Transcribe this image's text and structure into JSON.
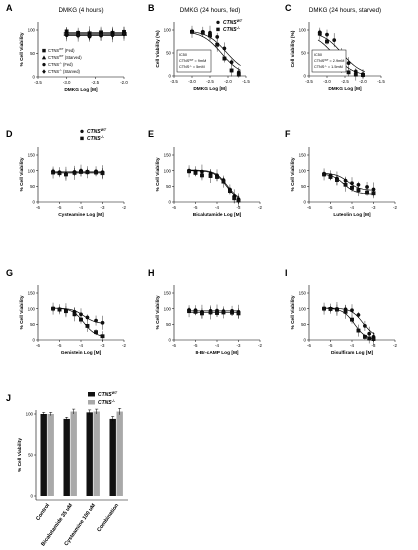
{
  "figure": {
    "colors": {
      "wt": "#111111",
      "ko": "#111111",
      "bar_wt": "#111111",
      "bar_ko": "#a9a9a9"
    }
  },
  "chart_data": [
    {
      "panel": "A",
      "type": "line",
      "title": "DMKG (4 hours)",
      "xlabel": "DMKG Log [M]",
      "ylabel": "% Cell Viability",
      "xlim": [
        -3.5,
        -2.0
      ],
      "ylim": [
        0,
        100
      ],
      "xticks": [
        "-3.5",
        "-3.0",
        "-2.5",
        "-2.0"
      ],
      "yticks": [
        "0",
        "50",
        "100"
      ],
      "legend": [
        "CTNS^WT (Fed)",
        "CTNS^WT (Starved)",
        "CTNS^-/- (Fed)",
        "CTNS^-/- (Starved)"
      ],
      "series": [
        {
          "name": "CTNS^WT (Fed)",
          "marker": "square",
          "x": [
            -3.0,
            -2.8,
            -2.6,
            -2.4,
            -2.2,
            -2.0
          ],
          "y": [
            97,
            94,
            93,
            95,
            94,
            96
          ]
        },
        {
          "name": "CTNS^WT (Starved)",
          "marker": "triangle",
          "x": [
            -3.0,
            -2.8,
            -2.6,
            -2.4,
            -2.2,
            -2.0
          ],
          "y": [
            93,
            91,
            90,
            92,
            93,
            94
          ]
        },
        {
          "name": "CTNS^-/- (Fed)",
          "marker": "circle",
          "x": [
            -3.0,
            -2.8,
            -2.6,
            -2.4,
            -2.2,
            -2.0
          ],
          "y": [
            89,
            88,
            86,
            88,
            89,
            91
          ]
        },
        {
          "name": "CTNS^-/- (Starved)",
          "marker": "diamond",
          "x": [
            -3.0,
            -2.8,
            -2.6,
            -2.4,
            -2.2,
            -2.0
          ],
          "y": [
            91,
            89,
            88,
            90,
            90,
            92
          ]
        }
      ]
    },
    {
      "panel": "B",
      "type": "line",
      "title": "DMKG (24 hours, fed)",
      "xlabel": "DMKG Log [M]",
      "ylabel": "Cell Viability (%)",
      "xlim": [
        -3.5,
        -1.5
      ],
      "ylim": [
        0,
        100
      ],
      "xticks": [
        "-3.5",
        "-3.0",
        "-2.5",
        "-2.0",
        "-1.5"
      ],
      "yticks": [
        "0",
        "50",
        "100"
      ],
      "legend": [
        "CTNS^WT",
        "CTNS^-/-"
      ],
      "ic50_box": [
        "IC50",
        "CTNS^WT = 9mM",
        "CTNS^-/- = 5mM"
      ],
      "series": [
        {
          "name": "CTNS^WT",
          "marker": "circle",
          "x": [
            -3.0,
            -2.7,
            -2.5,
            -2.3,
            -2.1,
            -1.9,
            -1.7
          ],
          "y": [
            97,
            96,
            94,
            85,
            60,
            30,
            8
          ]
        },
        {
          "name": "CTNS^-/-",
          "marker": "square",
          "x": [
            -3.0,
            -2.7,
            -2.5,
            -2.3,
            -2.1,
            -1.9,
            -1.7
          ],
          "y": [
            96,
            94,
            88,
            68,
            38,
            12,
            3
          ]
        }
      ]
    },
    {
      "panel": "C",
      "type": "line",
      "title": "DMKG (24 hours, starved)",
      "xlabel": "DMKG Log [M]",
      "ylabel": "Cell viability (%)",
      "xlim": [
        -3.5,
        -1.5
      ],
      "ylim": [
        0,
        100
      ],
      "xticks": [
        "-3.5",
        "-3.0",
        "-2.5",
        "-2.0",
        "-1.5"
      ],
      "yticks": [
        "0",
        "50",
        "100"
      ],
      "ic50_box": [
        "IC50",
        "CTNS^WT = 2.9mM",
        "CTNS^-/- = 1.5mM"
      ],
      "series": [
        {
          "name": "CTNS^WT",
          "marker": "circle",
          "x": [
            -3.2,
            -3.0,
            -2.8,
            -2.6,
            -2.4,
            -2.2,
            -2.0
          ],
          "y": [
            95,
            90,
            78,
            52,
            28,
            10,
            4
          ]
        },
        {
          "name": "CTNS^-/-",
          "marker": "square",
          "x": [
            -3.2,
            -3.0,
            -2.8,
            -2.6,
            -2.4,
            -2.2,
            -2.0
          ],
          "y": [
            92,
            75,
            45,
            22,
            8,
            3,
            2
          ]
        }
      ]
    },
    {
      "panel": "D",
      "type": "line",
      "xlabel": "Cysteamine Log [M]",
      "ylabel": "% Cell Viability",
      "xlim": [
        -6,
        -2
      ],
      "ylim": [
        0,
        150
      ],
      "xticks": [
        "-6",
        "-5",
        "-4",
        "-3",
        "-2"
      ],
      "yticks": [
        "0",
        "50",
        "100",
        "150"
      ],
      "legend": [
        "CTNS^WT",
        "CTNS^-/-"
      ],
      "series": [
        {
          "name": "CTNS^WT",
          "marker": "circle",
          "x": [
            -5.3,
            -5.0,
            -4.7,
            -4.3,
            -4.0,
            -3.7,
            -3.3,
            -3.0
          ],
          "y": [
            98,
            95,
            90,
            96,
            100,
            97,
            98,
            95
          ]
        },
        {
          "name": "CTNS^-/-",
          "marker": "square",
          "x": [
            -5.3,
            -5.0,
            -4.7,
            -4.3,
            -4.0,
            -3.7,
            -3.3,
            -3.0
          ],
          "y": [
            94,
            92,
            88,
            93,
            96,
            95,
            94,
            92
          ]
        }
      ]
    },
    {
      "panel": "E",
      "type": "line",
      "xlabel": "Bicalutamide Log [M]",
      "ylabel": "% Cell Viability",
      "xlim": [
        -6,
        -2
      ],
      "ylim": [
        0,
        150
      ],
      "xticks": [
        "-6",
        "-5",
        "-4",
        "-3",
        "-2"
      ],
      "yticks": [
        "0",
        "50",
        "100",
        "150"
      ],
      "series": [
        {
          "name": "CTNS^WT",
          "marker": "circle",
          "x": [
            -5.3,
            -5.0,
            -4.7,
            -4.3,
            -4.0,
            -3.7,
            -3.4,
            -3.2,
            -3.0
          ],
          "y": [
            100,
            98,
            97,
            90,
            85,
            70,
            40,
            18,
            8
          ]
        },
        {
          "name": "CTNS^-/-",
          "marker": "square",
          "x": [
            -5.3,
            -5.0,
            -4.7,
            -4.3,
            -4.0,
            -3.7,
            -3.4,
            -3.2,
            -3.0
          ],
          "y": [
            98,
            93,
            85,
            83,
            80,
            65,
            35,
            12,
            5
          ]
        }
      ]
    },
    {
      "panel": "F",
      "type": "line",
      "xlabel": "Luteolin Log [M]",
      "ylabel": "% Cell Viability",
      "xlim": [
        -6,
        -2
      ],
      "ylim": [
        0,
        150
      ],
      "xticks": [
        "-6",
        "-5",
        "-4",
        "-3",
        "-2"
      ],
      "yticks": [
        "0",
        "50",
        "100",
        "150"
      ],
      "series": [
        {
          "name": "CTNS^WT",
          "marker": "circle",
          "x": [
            -5.3,
            -5.0,
            -4.7,
            -4.3,
            -4.0,
            -3.7,
            -3.3,
            -3.0
          ],
          "y": [
            90,
            85,
            75,
            68,
            60,
            55,
            48,
            40
          ]
        },
        {
          "name": "CTNS^-/-",
          "marker": "square",
          "x": [
            -5.3,
            -5.0,
            -4.7,
            -4.3,
            -4.0,
            -3.7,
            -3.3,
            -3.0
          ],
          "y": [
            88,
            80,
            70,
            55,
            45,
            38,
            30,
            28
          ]
        }
      ]
    },
    {
      "panel": "G",
      "type": "line",
      "xlabel": "Genistein Log [M]",
      "ylabel": "% Cell Viability",
      "xlim": [
        -6,
        -2
      ],
      "ylim": [
        0,
        150
      ],
      "xticks": [
        "-6",
        "-5",
        "-4",
        "-3",
        "-2"
      ],
      "yticks": [
        "0",
        "50",
        "100",
        "150"
      ],
      "series": [
        {
          "name": "CTNS^WT",
          "marker": "circle",
          "x": [
            -5.3,
            -5.0,
            -4.7,
            -4.3,
            -4.0,
            -3.7,
            -3.3,
            -3.0
          ],
          "y": [
            100,
            98,
            95,
            90,
            82,
            72,
            62,
            55
          ]
        },
        {
          "name": "CTNS^-/-",
          "marker": "square",
          "x": [
            -5.3,
            -5.0,
            -4.7,
            -4.3,
            -4.0,
            -3.7,
            -3.3,
            -3.0
          ],
          "y": [
            100,
            97,
            92,
            82,
            65,
            45,
            25,
            12
          ]
        }
      ]
    },
    {
      "panel": "H",
      "type": "line",
      "xlabel": "8-Br-cAMP Log [M]",
      "ylabel": "% Cell Viability",
      "xlim": [
        -6,
        -2
      ],
      "ylim": [
        0,
        150
      ],
      "xticks": [
        "-6",
        "-5",
        "-4",
        "-3",
        "-2"
      ],
      "yticks": [
        "0",
        "50",
        "100",
        "150"
      ],
      "series": [
        {
          "name": "CTNS^WT",
          "marker": "circle",
          "x": [
            -5.3,
            -5.0,
            -4.7,
            -4.3,
            -4.0,
            -3.7,
            -3.3,
            -3.0
          ],
          "y": [
            96,
            95,
            90,
            93,
            94,
            92,
            93,
            90
          ]
        },
        {
          "name": "CTNS^-/-",
          "marker": "square",
          "x": [
            -5.3,
            -5.0,
            -4.7,
            -4.3,
            -4.0,
            -3.7,
            -3.3,
            -3.0
          ],
          "y": [
            92,
            90,
            85,
            88,
            86,
            88,
            87,
            85
          ]
        }
      ]
    },
    {
      "panel": "I",
      "type": "line",
      "xlabel": "Disulfiram Log [M]",
      "ylabel": "% Cell Viability",
      "xlim": [
        -6,
        -2
      ],
      "ylim": [
        0,
        150
      ],
      "xticks": [
        "-6",
        "-5",
        "-4",
        "-3",
        "-2"
      ],
      "yticks": [
        "0",
        "50",
        "100",
        "150"
      ],
      "series": [
        {
          "name": "CTNS^WT",
          "marker": "circle",
          "x": [
            -5.3,
            -5.0,
            -4.7,
            -4.3,
            -4.0,
            -3.7,
            -3.4,
            -3.2,
            -3.0
          ],
          "y": [
            100,
            100,
            99,
            98,
            95,
            80,
            45,
            20,
            10
          ]
        },
        {
          "name": "CTNS^-/-",
          "marker": "square",
          "x": [
            -5.3,
            -5.0,
            -4.7,
            -4.3,
            -4.0,
            -3.7,
            -3.4,
            -3.2,
            -3.0
          ],
          "y": [
            100,
            99,
            97,
            90,
            65,
            30,
            10,
            5,
            3
          ]
        }
      ]
    },
    {
      "panel": "J",
      "type": "bar",
      "ylabel": "% Cell Viability",
      "ylim": [
        0,
        100
      ],
      "yticks": [
        "0",
        "50",
        "100"
      ],
      "categories": [
        "Control",
        "Bicalutamide 35 uM",
        "Cysteamine 100 uM",
        "Combination"
      ],
      "legend": [
        "CTNS^WT",
        "CTNS^-/-"
      ],
      "series": [
        {
          "name": "CTNS^WT",
          "values": [
            100,
            94,
            102,
            94
          ],
          "errors": [
            2,
            2,
            3,
            3
          ]
        },
        {
          "name": "CTNS^-/-",
          "values": [
            100,
            103,
            103,
            103
          ],
          "errors": [
            2,
            3,
            3,
            4
          ]
        }
      ]
    }
  ]
}
